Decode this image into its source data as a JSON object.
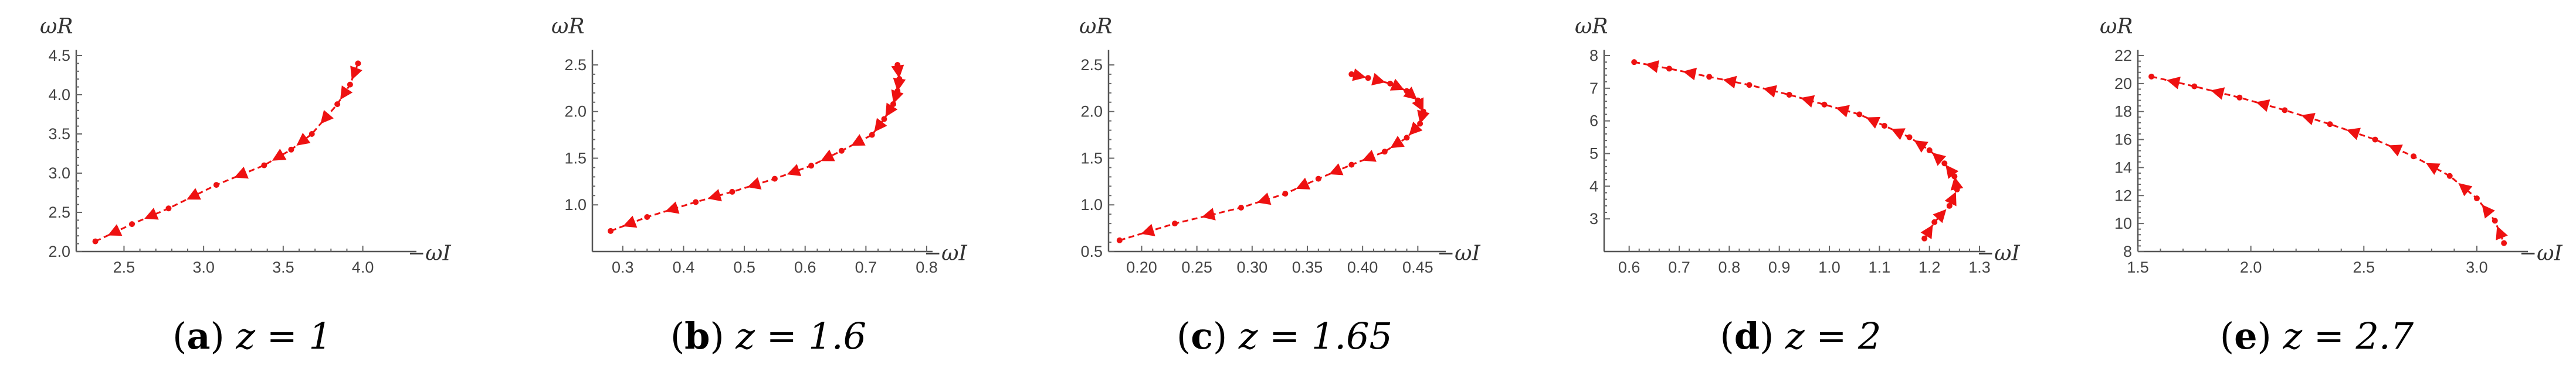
{
  "figure": {
    "panels": [
      {
        "letter": "a",
        "caption_rest": "z = 1",
        "ylabel": "ωR",
        "xlabel": "−ωI"
      },
      {
        "letter": "b",
        "caption_rest": "z = 1.6",
        "ylabel": "ωR",
        "xlabel": "−ωI"
      },
      {
        "letter": "c",
        "caption_rest": "z = 1.65",
        "ylabel": "ωR",
        "xlabel": "−ωI"
      },
      {
        "letter": "d",
        "caption_rest": "z = 2",
        "ylabel": "ωR",
        "xlabel": "−ωI"
      },
      {
        "letter": "e",
        "caption_rest": "z = 2.7",
        "ylabel": "ωR",
        "xlabel": "−ωI"
      }
    ],
    "colors": {
      "series": "#ee1111"
    }
  },
  "chart_data": [
    {
      "type": "line",
      "title": "",
      "xlabel": "−ωI",
      "ylabel": "ωR",
      "xlim": [
        2.2,
        4.3
      ],
      "ylim": [
        2.0,
        4.5
      ],
      "xticks": [
        "2.5",
        "3.0",
        "3.5",
        "4.0"
      ],
      "yticks": [
        "2.0",
        "2.5",
        "3.0",
        "3.5",
        "4.0",
        "4.5"
      ],
      "xtick_values": [
        2.5,
        3.0,
        3.5,
        4.0
      ],
      "ytick_values": [
        2.0,
        2.5,
        3.0,
        3.5,
        4.0,
        4.5
      ],
      "series": [
        {
          "x": [
            2.32,
            2.55,
            2.78,
            3.08,
            3.38,
            3.55,
            3.68,
            3.84,
            3.92,
            3.97
          ],
          "y": [
            2.13,
            2.35,
            2.55,
            2.85,
            3.1,
            3.3,
            3.5,
            3.88,
            4.13,
            4.4
          ]
        }
      ],
      "arrows": "towards lower values",
      "grid": false
    },
    {
      "type": "line",
      "title": "",
      "xlabel": "−ωI",
      "ylabel": "ωR",
      "xlim": [
        0.25,
        0.8
      ],
      "ylim": [
        0.5,
        2.6
      ],
      "xticks": [
        "0.3",
        "0.4",
        "0.5",
        "0.6",
        "0.7",
        "0.8"
      ],
      "yticks": [
        "1.0",
        "1.5",
        "2.0",
        "2.5"
      ],
      "xtick_values": [
        0.3,
        0.4,
        0.5,
        0.6,
        0.7,
        0.8
      ],
      "ytick_values": [
        1.0,
        1.5,
        2.0,
        2.5
      ],
      "series": [
        {
          "x": [
            0.28,
            0.34,
            0.42,
            0.48,
            0.55,
            0.61,
            0.66,
            0.71,
            0.73,
            0.745,
            0.752,
            0.755,
            0.752
          ],
          "y": [
            0.72,
            0.87,
            1.03,
            1.14,
            1.28,
            1.42,
            1.58,
            1.75,
            1.92,
            2.08,
            2.22,
            2.35,
            2.5
          ]
        }
      ],
      "arrows": "towards lower values",
      "grid": false
    },
    {
      "type": "line",
      "title": "",
      "xlabel": "−ωI",
      "ylabel": "ωR",
      "xlim": [
        0.17,
        0.47
      ],
      "ylim": [
        0.5,
        2.6
      ],
      "xticks": [
        "0.20",
        "0.25",
        "0.30",
        "0.35",
        "0.40",
        "0.45"
      ],
      "yticks": [
        "0.5",
        "1.0",
        "1.5",
        "2.0",
        "2.5"
      ],
      "xtick_values": [
        0.2,
        0.25,
        0.3,
        0.35,
        0.4,
        0.45
      ],
      "ytick_values": [
        0.5,
        1.0,
        1.5,
        2.0,
        2.5
      ],
      "series": [
        {
          "x": [
            0.18,
            0.23,
            0.29,
            0.33,
            0.36,
            0.39,
            0.42,
            0.44,
            0.452,
            0.455,
            0.45,
            0.44,
            0.425,
            0.405,
            0.39
          ],
          "y": [
            0.62,
            0.8,
            0.97,
            1.12,
            1.28,
            1.43,
            1.57,
            1.72,
            1.87,
            2.0,
            2.12,
            2.22,
            2.3,
            2.36,
            2.4
          ]
        }
      ],
      "arrows": "along the curve towards its lower end",
      "grid": false
    },
    {
      "type": "line",
      "title": "",
      "xlabel": "−ωI",
      "ylabel": "ωR",
      "xlim": [
        0.55,
        1.3
      ],
      "ylim": [
        2.0,
        8.0
      ],
      "xticks": [
        "0.6",
        "0.7",
        "0.8",
        "0.9",
        "1.0",
        "1.1",
        "1.2",
        "1.3"
      ],
      "yticks": [
        "3",
        "4",
        "5",
        "6",
        "7",
        "8"
      ],
      "xtick_values": [
        0.6,
        0.7,
        0.8,
        0.9,
        1.0,
        1.1,
        1.2,
        1.3
      ],
      "ytick_values": [
        3,
        4,
        5,
        6,
        7,
        8
      ],
      "series": [
        {
          "x": [
            0.61,
            0.68,
            0.76,
            0.84,
            0.92,
            0.99,
            1.06,
            1.11,
            1.16,
            1.2,
            1.23,
            1.25,
            1.255,
            1.24,
            1.21,
            1.19
          ],
          "y": [
            7.8,
            7.6,
            7.35,
            7.1,
            6.8,
            6.5,
            6.2,
            5.85,
            5.5,
            5.1,
            4.7,
            4.3,
            3.9,
            3.4,
            2.9,
            2.4
          ]
        }
      ],
      "arrows": "along the curve",
      "grid": false
    },
    {
      "type": "line",
      "title": "",
      "xlabel": "−ωI",
      "ylabel": "ωR",
      "xlim": [
        1.5,
        3.2
      ],
      "ylim": [
        8,
        22
      ],
      "xticks": [
        "1.5",
        "2.0",
        "2.5",
        "3.0"
      ],
      "yticks": [
        "8",
        "10",
        "12",
        "14",
        "16",
        "18",
        "20",
        "22"
      ],
      "xtick_values": [
        1.5,
        2.0,
        2.5,
        3.0
      ],
      "ytick_values": [
        8,
        10,
        12,
        14,
        16,
        18,
        20,
        22
      ],
      "series": [
        {
          "x": [
            1.56,
            1.75,
            1.95,
            2.15,
            2.35,
            2.55,
            2.72,
            2.88,
            3.0,
            3.08,
            3.12
          ],
          "y": [
            20.5,
            19.8,
            19.0,
            18.1,
            17.1,
            16.0,
            14.8,
            13.4,
            11.8,
            10.2,
            8.6
          ]
        }
      ],
      "arrows": "along the curve",
      "grid": false
    }
  ]
}
